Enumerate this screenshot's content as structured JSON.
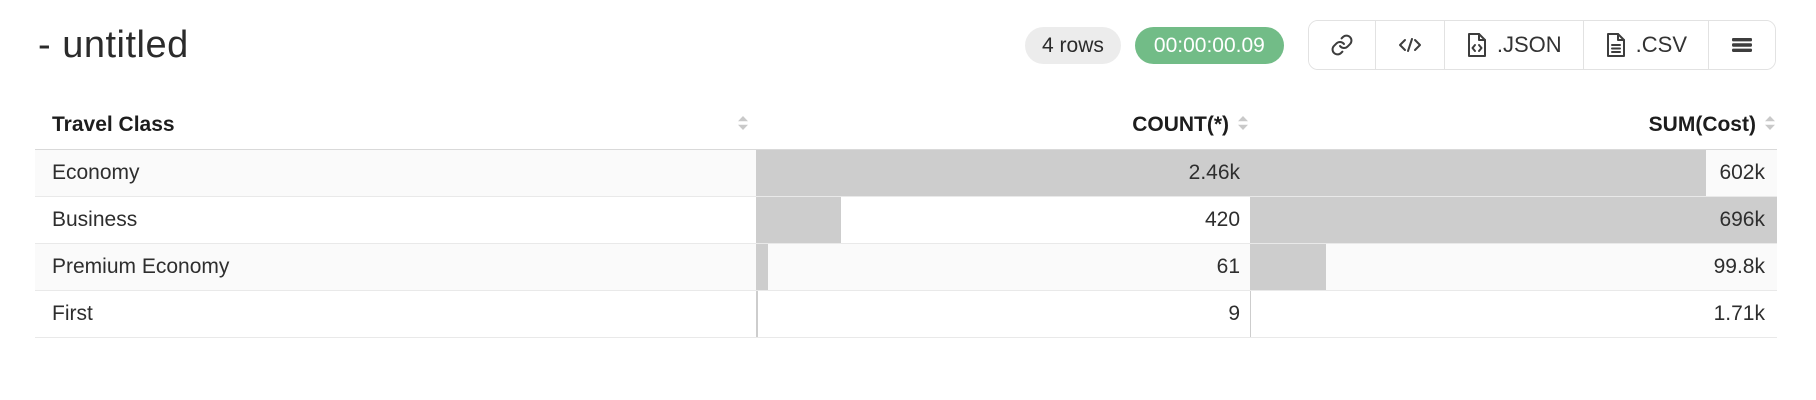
{
  "window": {
    "title": "- untitled"
  },
  "toolbar": {
    "rows_badge": "4 rows",
    "timer": "00:00:00.09",
    "buttons": {
      "link": {
        "icon": "link-icon"
      },
      "code": {
        "icon": "code-icon"
      },
      "json": {
        "label": ".JSON",
        "icon": "file-code-icon"
      },
      "csv": {
        "label": ".CSV",
        "icon": "file-text-icon"
      },
      "menu": {
        "icon": "menu-icon"
      }
    }
  },
  "table": {
    "columns": [
      {
        "key": "travel_class",
        "label": "Travel Class",
        "align": "left",
        "sortable": true
      },
      {
        "key": "count",
        "label": "COUNT(*)",
        "align": "right",
        "sortable": true
      },
      {
        "key": "sum_cost",
        "label": "SUM(Cost)",
        "align": "right",
        "sortable": true
      }
    ],
    "rows": [
      {
        "travel_class": "Economy",
        "count_display": "2.46k",
        "count_value": 2460,
        "sum_display": "602k",
        "sum_value": 602000
      },
      {
        "travel_class": "Business",
        "count_display": "420",
        "count_value": 420,
        "sum_display": "696k",
        "sum_value": 696000
      },
      {
        "travel_class": "Premium Economy",
        "count_display": "61",
        "count_value": 61,
        "sum_display": "99.8k",
        "sum_value": 99800
      },
      {
        "travel_class": "First",
        "count_display": "9",
        "count_value": 9,
        "sum_display": "1.71k",
        "sum_value": 1710
      }
    ]
  },
  "colors": {
    "timer_badge_bg": "#72bc87",
    "rows_badge_bg": "#ececec",
    "bar_fill": "#cdcdcd",
    "row_alt_bg": "#fafafa",
    "border": "#e2e2e2",
    "text": "#2e2e2e"
  }
}
